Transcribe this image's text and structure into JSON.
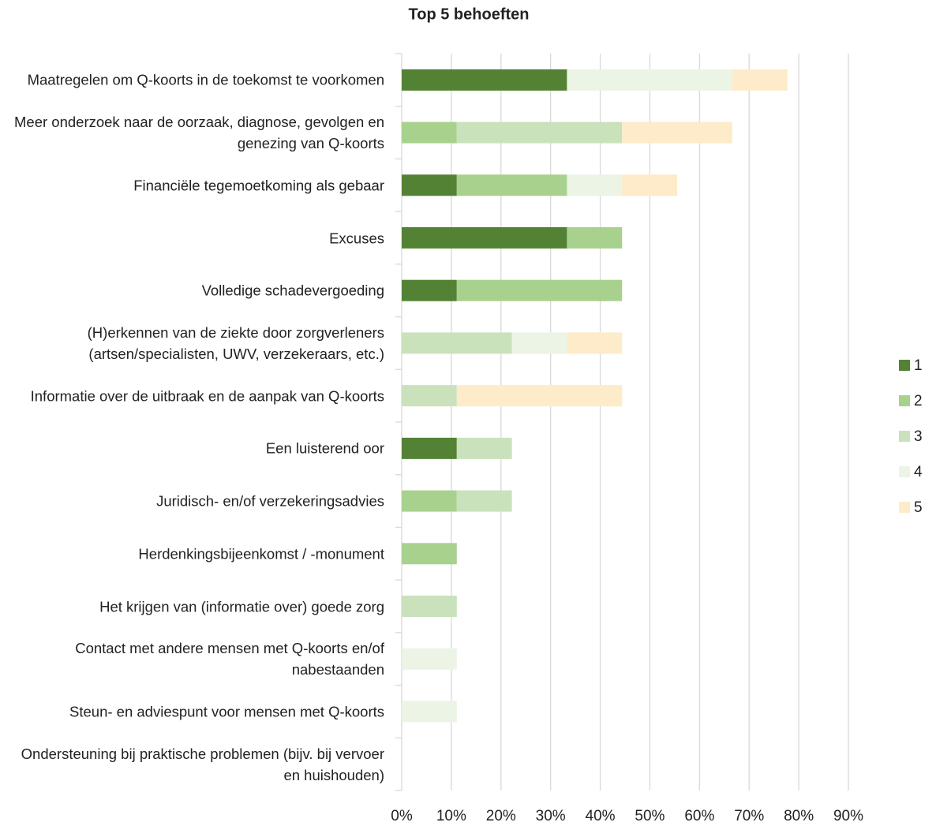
{
  "chart_data": {
    "type": "stacked-barh",
    "title": "Top 5 behoeften",
    "categories": [
      "Maatregelen om Q-koorts in de toekomst te voorkomen",
      "Meer onderzoek naar de oorzaak, diagnose, gevolgen en genezing van Q-koorts",
      "Financiële tegemoetkoming als gebaar",
      "Excuses",
      "Volledige schadevergoeding",
      "(H)erkennen van de ziekte door zorgverleners (artsen/specialisten, UWV, verzekeraars, etc.)",
      "Informatie over de uitbraak en de aanpak van Q-koorts",
      "Een luisterend oor",
      "Juridisch- en/of verzekeringsadvies",
      "Herdenkingsbijeenkomst / -monument",
      "Het krijgen van (informatie over) goede zorg",
      "Contact met andere mensen met Q-koorts en/of nabestaanden",
      "Steun- en adviespunt voor mensen met Q-koorts",
      "Ondersteuning bij praktische problemen (bijv. bij vervoer en huishouden)"
    ],
    "series": [
      {
        "name": "1",
        "color": "#548235",
        "values": [
          33.3,
          0,
          11.1,
          33.3,
          11.1,
          0,
          0,
          11.1,
          0,
          0,
          0,
          0,
          0,
          0
        ]
      },
      {
        "name": "2",
        "color": "#a9d18e",
        "values": [
          0,
          11.1,
          22.2,
          11.1,
          33.3,
          0,
          0,
          0,
          11.1,
          11.1,
          0,
          0,
          0,
          0
        ]
      },
      {
        "name": "3",
        "color": "#c9e2bc",
        "values": [
          0,
          33.3,
          0,
          0,
          0,
          22.2,
          11.1,
          11.1,
          11.1,
          0,
          11.1,
          0,
          0,
          0
        ]
      },
      {
        "name": "4",
        "color": "#ebf4e5",
        "values": [
          33.3,
          0,
          11.1,
          0,
          0,
          11.1,
          0,
          0,
          0,
          0,
          0,
          11.1,
          11.1,
          0
        ]
      },
      {
        "name": "5",
        "color": "#fdebc9",
        "values": [
          11.1,
          22.2,
          11.1,
          0,
          0,
          11.1,
          33.3,
          0,
          0,
          0,
          0,
          0,
          0,
          0
        ]
      }
    ],
    "xlim": [
      0,
      90
    ],
    "xticks": [
      {
        "value": 0,
        "label": "0%"
      },
      {
        "value": 10,
        "label": "10%"
      },
      {
        "value": 20,
        "label": "20%"
      },
      {
        "value": 30,
        "label": "30%"
      },
      {
        "value": 40,
        "label": "40%"
      },
      {
        "value": 50,
        "label": "50%"
      },
      {
        "value": 60,
        "label": "60%"
      },
      {
        "value": 70,
        "label": "70%"
      },
      {
        "value": 80,
        "label": "80%"
      },
      {
        "value": 90,
        "label": "90%"
      }
    ],
    "grid": true,
    "legend": "right"
  }
}
